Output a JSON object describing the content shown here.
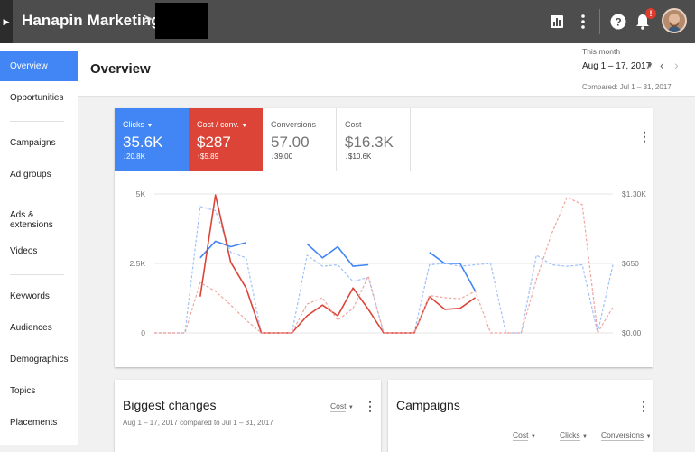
{
  "topbar": {
    "account_name": "Hanapin Marketing LLC",
    "crumb_separator": ">",
    "notification_badge": "!"
  },
  "sidebar": {
    "items": [
      {
        "label": "Overview",
        "active": true
      },
      {
        "label": "Opportunities"
      },
      {
        "label": "Campaigns"
      },
      {
        "label": "Ad groups"
      },
      {
        "label": "Ads & extensions"
      },
      {
        "label": "Videos"
      },
      {
        "label": "Keywords"
      },
      {
        "label": "Audiences"
      },
      {
        "label": "Demographics"
      },
      {
        "label": "Topics"
      },
      {
        "label": "Placements"
      }
    ]
  },
  "header": {
    "title": "Overview",
    "date_label": "This month",
    "date_value": "Aug 1 – 17, 2017",
    "compared": "Compared: Jul 1 – 31, 2017"
  },
  "metrics": [
    {
      "label": "Clicks",
      "value": "35.6K",
      "delta": "20.8K",
      "direction": "down",
      "color": "#4285f4",
      "selected": true
    },
    {
      "label": "Cost / conv.",
      "value": "$287",
      "delta": "$5.89",
      "direction": "up",
      "color": "#db4437",
      "selected": true
    },
    {
      "label": "Conversions",
      "value": "57.00",
      "delta": "39.00",
      "direction": "down",
      "selected": false
    },
    {
      "label": "Cost",
      "value": "$16.3K",
      "delta": "$10.6K",
      "direction": "down",
      "selected": false
    }
  ],
  "chart_data": {
    "type": "line",
    "y_left_ticks": [
      "5K",
      "2.5K",
      "0"
    ],
    "y_right_ticks": [
      "$1.30K",
      "$650",
      "$0.00"
    ],
    "ylim_left": [
      0,
      5000
    ],
    "ylim_right": [
      0,
      1300
    ],
    "x": [
      1,
      2,
      3,
      4,
      5,
      6,
      7,
      8,
      9,
      10,
      11,
      12,
      13,
      14,
      15,
      16,
      17,
      18,
      19,
      20,
      21,
      22,
      23,
      24,
      25,
      26,
      27,
      28,
      29,
      30,
      31
    ],
    "series": [
      {
        "axis": "left",
        "color": "#4285f4",
        "style": "solid",
        "values": [
          null,
          null,
          null,
          2700,
          3300,
          3100,
          3250,
          null,
          null,
          null,
          3200,
          2700,
          3100,
          2400,
          2450,
          null,
          null,
          null,
          2900,
          2500,
          2500,
          1500,
          null,
          null,
          null,
          null,
          null,
          null,
          null,
          null,
          null
        ]
      },
      {
        "axis": "left",
        "color": "#a0c0f8",
        "style": "dashed",
        "values": [
          0,
          0,
          0,
          4550,
          4400,
          2900,
          2700,
          0,
          0,
          0,
          2800,
          2400,
          2450,
          1850,
          2000,
          0,
          0,
          0,
          2450,
          2500,
          2400,
          2450,
          2500,
          0,
          0,
          2800,
          2450,
          2400,
          2450,
          0,
          2450
        ]
      },
      {
        "axis": "right",
        "color": "#db4437",
        "style": "solid",
        "values": [
          null,
          null,
          null,
          340,
          1290,
          660,
          420,
          0,
          0,
          0,
          160,
          260,
          160,
          420,
          220,
          0,
          0,
          0,
          340,
          220,
          230,
          330,
          null,
          null,
          null,
          null,
          null,
          null,
          null,
          null,
          null
        ]
      },
      {
        "axis": "right",
        "color": "#f0a59e",
        "style": "dashed",
        "values": [
          0,
          0,
          0,
          470,
          390,
          260,
          120,
          0,
          0,
          0,
          270,
          330,
          120,
          230,
          530,
          0,
          0,
          0,
          350,
          330,
          320,
          390,
          0,
          0,
          0,
          500,
          930,
          1270,
          1200,
          0,
          240
        ]
      }
    ]
  },
  "biggest_changes": {
    "title": "Biggest changes",
    "subtitle": "Aug 1 – 17, 2017 compared to Jul 1 – 31, 2017",
    "dropdown": "Cost"
  },
  "campaigns": {
    "title": "Campaigns",
    "columns": [
      "Cost",
      "Clicks",
      "Conversions"
    ]
  }
}
